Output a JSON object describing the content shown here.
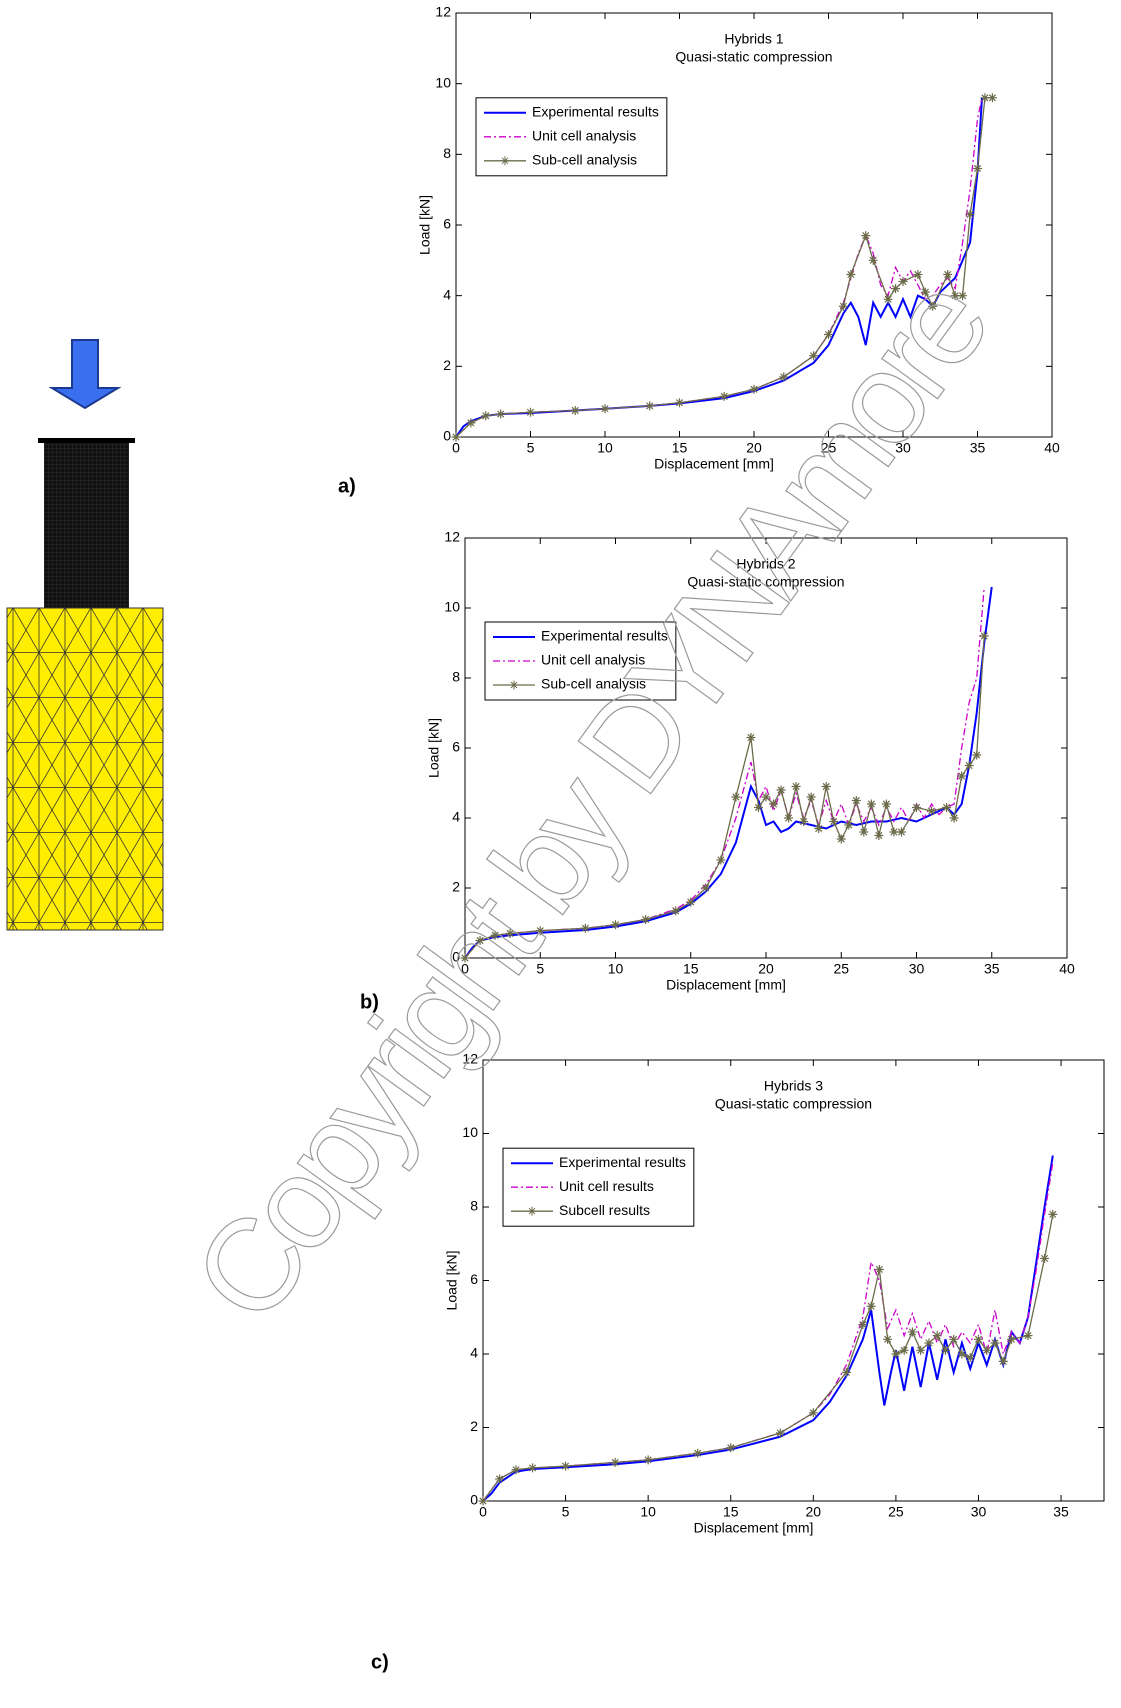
{
  "chart_data": [
    {
      "type": "line",
      "title": "Hybrids 1",
      "subtitle": "Quasi-static compression",
      "x_label": "Displacement [mm]",
      "y_label": "Load [kN]",
      "xlim": [
        0,
        40
      ],
      "ylim": [
        0,
        12
      ],
      "xticks": [
        0,
        5,
        10,
        15,
        20,
        25,
        30,
        35,
        40
      ],
      "yticks": [
        0,
        2,
        4,
        6,
        8,
        10,
        12
      ],
      "legend": "upper left",
      "series": [
        {
          "name": "Experimental results",
          "color": "#0000ff",
          "style": "solid",
          "x": [
            0,
            0.5,
            1,
            2,
            3,
            5,
            8,
            10,
            13,
            15,
            18,
            20,
            22,
            24,
            25,
            26,
            26.5,
            27,
            27.5,
            28,
            28.5,
            29,
            29.5,
            30,
            30.5,
            31,
            31.5,
            32,
            32.5,
            33,
            33.5,
            34,
            34.5,
            35,
            35.3
          ],
          "values": [
            0,
            0.3,
            0.45,
            0.6,
            0.65,
            0.68,
            0.75,
            0.8,
            0.88,
            0.95,
            1.1,
            1.3,
            1.6,
            2.1,
            2.6,
            3.5,
            3.8,
            3.4,
            2.6,
            3.8,
            3.4,
            3.8,
            3.4,
            3.9,
            3.4,
            4.0,
            3.9,
            3.7,
            4.1,
            4.3,
            4.5,
            5.0,
            5.5,
            7.5,
            9.6
          ]
        },
        {
          "name": "Unit cell analysis",
          "color": "#cc00cc",
          "style": "dashdot",
          "x": [
            0,
            1,
            2,
            3,
            5,
            8,
            10,
            13,
            15,
            18,
            20,
            22,
            24,
            25,
            26,
            27,
            27.5,
            28,
            28.5,
            29,
            29.5,
            30,
            30.5,
            31,
            31.5,
            32,
            32.5,
            33,
            33.5,
            34,
            34.5,
            35,
            35.3
          ],
          "values": [
            0,
            0.4,
            0.6,
            0.65,
            0.7,
            0.75,
            0.8,
            0.88,
            0.97,
            1.15,
            1.35,
            1.7,
            2.3,
            2.9,
            3.8,
            5.2,
            5.7,
            5.2,
            4.3,
            4.0,
            4.8,
            4.4,
            4.7,
            4.3,
            3.9,
            4.0,
            4.3,
            4.5,
            4.2,
            5.5,
            7,
            9,
            9.6
          ]
        },
        {
          "name": "Sub-cell analysis",
          "color": "#6b6b4a",
          "style": "star",
          "x": [
            0,
            1,
            2,
            3,
            5,
            8,
            10,
            13,
            15,
            18,
            20,
            22,
            24,
            25,
            26,
            26.5,
            27.5,
            28,
            29,
            29.5,
            30,
            31,
            31.5,
            32,
            33,
            33.5,
            34,
            34.5,
            35,
            35.5,
            36
          ],
          "values": [
            0,
            0.4,
            0.6,
            0.65,
            0.7,
            0.75,
            0.8,
            0.88,
            0.97,
            1.15,
            1.35,
            1.7,
            2.3,
            2.9,
            3.7,
            4.6,
            5.7,
            5.0,
            3.9,
            4.2,
            4.4,
            4.6,
            4.1,
            3.7,
            4.6,
            4.0,
            4.0,
            6.3,
            7.6,
            9.6,
            9.6
          ]
        }
      ]
    },
    {
      "type": "line",
      "title": "Hybrids 2",
      "subtitle": "Quasi-static compression",
      "x_label": "Displacement [mm]",
      "y_label": "Load [kN]",
      "xlim": [
        0,
        40
      ],
      "ylim": [
        0,
        12
      ],
      "xticks": [
        0,
        5,
        10,
        15,
        20,
        25,
        30,
        35,
        40
      ],
      "yticks": [
        0,
        2,
        4,
        6,
        8,
        10,
        12
      ],
      "legend": "upper left",
      "series": [
        {
          "name": "Experimental results",
          "color": "#0000ff",
          "style": "solid",
          "x": [
            0,
            0.5,
            1,
            2,
            3,
            5,
            8,
            10,
            12,
            14,
            15,
            16,
            17,
            18,
            18.5,
            19,
            19.5,
            20,
            20.5,
            21,
            21.5,
            22,
            23,
            24,
            25,
            26,
            27,
            28,
            29,
            30,
            31,
            32,
            32.5,
            33,
            33.5,
            34,
            34.5,
            35
          ],
          "values": [
            0,
            0.3,
            0.5,
            0.6,
            0.65,
            0.72,
            0.8,
            0.9,
            1.05,
            1.3,
            1.55,
            1.9,
            2.4,
            3.3,
            4.1,
            4.9,
            4.5,
            3.8,
            3.9,
            3.6,
            3.7,
            3.9,
            3.8,
            3.7,
            3.9,
            3.8,
            3.9,
            3.9,
            4.0,
            3.9,
            4.1,
            4.3,
            4.1,
            4.4,
            5.5,
            7,
            9,
            10.6
          ]
        },
        {
          "name": "Unit cell analysis",
          "color": "#cc00cc",
          "style": "dashdot",
          "x": [
            0,
            1,
            2,
            3,
            5,
            8,
            10,
            12,
            14,
            15,
            16,
            17,
            18,
            18.5,
            19,
            19.5,
            20,
            20.5,
            21,
            21.5,
            22,
            22.5,
            23,
            23.5,
            24,
            24.5,
            25,
            25.5,
            26,
            26.5,
            27,
            27.5,
            28,
            28.5,
            29,
            29.5,
            30,
            30.5,
            31,
            31.5,
            32,
            32.5,
            33,
            33.5,
            34,
            34.5
          ],
          "values": [
            0,
            0.5,
            0.65,
            0.7,
            0.78,
            0.85,
            0.95,
            1.1,
            1.4,
            1.65,
            2.1,
            2.8,
            4.0,
            4.8,
            5.6,
            4.5,
            4.9,
            4.2,
            4.8,
            4.0,
            4.7,
            4.0,
            4.5,
            3.8,
            4.5,
            3.9,
            4.4,
            3.8,
            4.4,
            3.9,
            4.3,
            3.8,
            4.3,
            3.9,
            4.3,
            3.9,
            4.4,
            4.0,
            4.4,
            4.1,
            4.3,
            4.4,
            6.0,
            7.3,
            8,
            10.6
          ]
        },
        {
          "name": "Sub-cell analysis",
          "color": "#6b6b4a",
          "style": "star",
          "x": [
            0,
            1,
            2,
            3,
            5,
            8,
            10,
            12,
            14,
            15,
            16,
            17,
            18,
            19,
            19.5,
            20,
            20.5,
            21,
            21.5,
            22,
            22.5,
            23,
            23.5,
            24,
            24.5,
            25,
            25.5,
            26,
            26.5,
            27,
            27.5,
            28,
            28.5,
            29,
            30,
            31,
            32,
            32.5,
            33,
            33.5,
            34,
            34.5
          ],
          "values": [
            0,
            0.5,
            0.65,
            0.7,
            0.78,
            0.85,
            0.95,
            1.1,
            1.35,
            1.6,
            2.0,
            2.8,
            4.6,
            6.3,
            4.3,
            4.6,
            4.4,
            4.8,
            4.0,
            4.9,
            3.9,
            4.6,
            3.7,
            4.9,
            3.9,
            3.4,
            3.8,
            4.5,
            3.6,
            4.4,
            3.5,
            4.4,
            3.6,
            3.6,
            4.3,
            4.2,
            4.3,
            4.0,
            5.2,
            5.5,
            5.8,
            9.2
          ]
        }
      ]
    },
    {
      "type": "line",
      "title": "Hybrids 3",
      "subtitle": "Quasi-static compression",
      "x_label": "Displacement [mm]",
      "y_label": "Load [kN]",
      "xlim": [
        0,
        37.6
      ],
      "ylim": [
        0,
        12
      ],
      "xticks": [
        0,
        5,
        10,
        15,
        20,
        25,
        30,
        35
      ],
      "yticks": [
        0,
        2,
        4,
        6,
        8,
        10,
        12
      ],
      "legend": "upper left",
      "series": [
        {
          "name": "Experimental results",
          "color": "#0000ff",
          "style": "solid",
          "x": [
            0,
            0.5,
            1,
            2,
            3,
            5,
            8,
            10,
            13,
            15,
            18,
            20,
            21,
            22,
            23,
            23.5,
            24,
            24.3,
            24.7,
            25,
            25.5,
            26,
            26.5,
            27,
            27.5,
            28,
            28.5,
            29,
            29.5,
            30,
            30.5,
            31,
            31.5,
            32,
            32.5,
            33,
            33.5,
            34,
            34.5
          ],
          "values": [
            0,
            0.2,
            0.5,
            0.8,
            0.87,
            0.92,
            1.0,
            1.08,
            1.25,
            1.4,
            1.75,
            2.2,
            2.7,
            3.4,
            4.4,
            5.2,
            3.5,
            2.6,
            3.5,
            4.1,
            3.0,
            4.2,
            3.1,
            4.3,
            3.3,
            4.4,
            3.5,
            4.3,
            3.6,
            4.3,
            3.7,
            4.4,
            3.7,
            4.6,
            4.3,
            5.0,
            6.5,
            8,
            9.4
          ]
        },
        {
          "name": "Unit cell results",
          "color": "#cc00cc",
          "style": "dashdot",
          "x": [
            0,
            1,
            2,
            3,
            5,
            8,
            10,
            13,
            15,
            18,
            20,
            21,
            22,
            23,
            23.5,
            24,
            24.5,
            25,
            25.5,
            26,
            26.5,
            27,
            27.5,
            28,
            28.5,
            29,
            29.5,
            30,
            30.5,
            31,
            31.5,
            32,
            32.5,
            33,
            33.5,
            34,
            34.5
          ],
          "values": [
            0,
            0.6,
            0.85,
            0.9,
            0.95,
            1.05,
            1.12,
            1.3,
            1.45,
            1.85,
            2.4,
            2.9,
            3.7,
            5.0,
            6.5,
            6.0,
            4.7,
            5.2,
            4.5,
            5.1,
            4.4,
            4.9,
            4.3,
            4.8,
            4.2,
            4.6,
            4.3,
            4.8,
            4.0,
            5.2,
            4.0,
            4.6,
            4.3,
            5.0,
            6.3,
            7.8,
            9.2
          ]
        },
        {
          "name": "Subcell results",
          "color": "#6b6b4a",
          "style": "star",
          "x": [
            0,
            1,
            2,
            3,
            5,
            8,
            10,
            13,
            15,
            18,
            20,
            22,
            23,
            23.5,
            24,
            24.5,
            25,
            25.5,
            26,
            26.5,
            27,
            27.5,
            28,
            28.5,
            29,
            29.5,
            30,
            30.5,
            31,
            31.5,
            32,
            33,
            34,
            34.5
          ],
          "values": [
            0,
            0.6,
            0.85,
            0.9,
            0.95,
            1.05,
            1.12,
            1.3,
            1.45,
            1.85,
            2.4,
            3.5,
            4.8,
            5.3,
            6.3,
            4.4,
            4.0,
            4.1,
            4.6,
            4.1,
            4.3,
            4.5,
            4.1,
            4.4,
            4.0,
            3.9,
            4.4,
            4.1,
            4.3,
            3.8,
            4.4,
            4.5,
            6.6,
            7.8
          ]
        }
      ]
    }
  ],
  "panel_labels": [
    "a)",
    "b)",
    "c)"
  ],
  "watermark": "Copyright by DYNAmore"
}
